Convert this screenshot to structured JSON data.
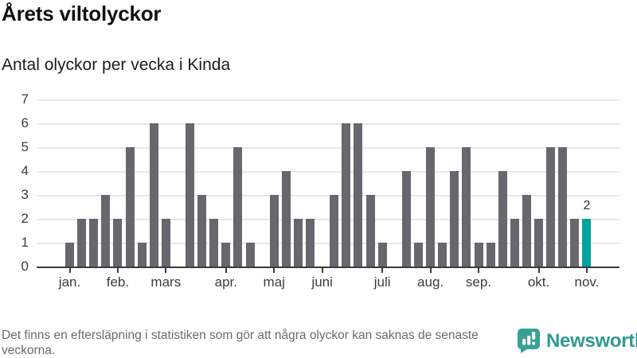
{
  "header": {
    "title": "Årets viltolyckor",
    "subtitle": "Antal olyckor per vecka i Kinda"
  },
  "chart_data": {
    "type": "bar",
    "title": "Årets viltolyckor",
    "subtitle": "Antal olyckor per vecka i Kinda",
    "x_unit": "vecka",
    "n_weeks": 44,
    "values": [
      1,
      2,
      2,
      3,
      2,
      5,
      1,
      6,
      2,
      0,
      6,
      3,
      2,
      1,
      5,
      1,
      0,
      3,
      4,
      2,
      2,
      0,
      3,
      6,
      6,
      3,
      1,
      0,
      4,
      1,
      5,
      1,
      4,
      5,
      1,
      1,
      4,
      2,
      3,
      2,
      5,
      5,
      2,
      2
    ],
    "month_ticks": [
      {
        "label": "jan.",
        "week": 1
      },
      {
        "label": "feb.",
        "week": 5
      },
      {
        "label": "mars",
        "week": 9
      },
      {
        "label": "apr.",
        "week": 14
      },
      {
        "label": "maj",
        "week": 18
      },
      {
        "label": "juni",
        "week": 22
      },
      {
        "label": "juli",
        "week": 27
      },
      {
        "label": "aug.",
        "week": 31
      },
      {
        "label": "sep.",
        "week": 35
      },
      {
        "label": "okt.",
        "week": 40
      },
      {
        "label": "nov.",
        "week": 44
      }
    ],
    "yticks": [
      0,
      1,
      2,
      3,
      4,
      5,
      6,
      7
    ],
    "ylim": [
      0,
      7
    ],
    "grid": true,
    "legend_position": "none",
    "bar_color": "#67676d",
    "highlight_color": "#00a49d",
    "highlight_week": 44,
    "value_label": {
      "week": 44,
      "text": "2"
    }
  },
  "footer": {
    "disclaimer": "Det finns en eftersläpning i statistiken som gör att några olyckor kan saknas de senaste veckorna.",
    "brand_name": "Newsworthy",
    "brand_icon": "newsworthy-speech-bubble-chart-icon",
    "brand_color": "#2e9a92",
    "brand_icon_color": "#3aa096"
  }
}
